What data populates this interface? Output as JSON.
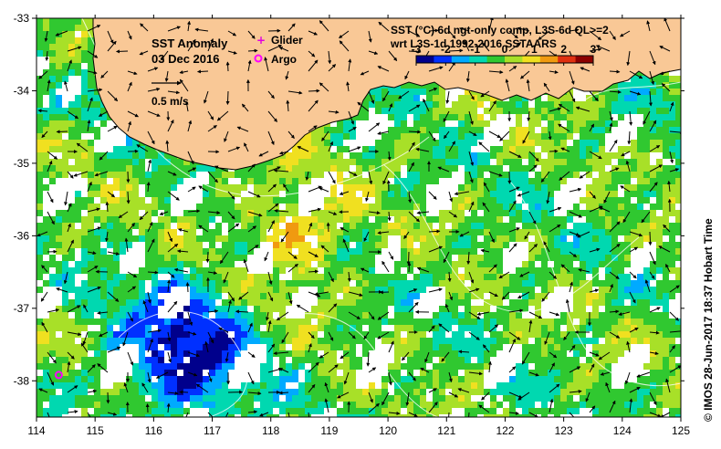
{
  "map": {
    "title": "SST Anomaly",
    "date": "03 Dec 2016",
    "scale_label": "0.5 m/s",
    "legend": {
      "glider": "Glider",
      "argo": "Argo",
      "glider_color": "#e000e0",
      "argo_color": "#ff00ff"
    },
    "product_line1": "SST (°C) 6d ngt-only comp, L3S-6d QL>=2",
    "product_line2": "wrt L3S-1d 1992-2016 SSTAARS",
    "credit": "© IMOS 28-Jun-2017 18:37 Hobart Time",
    "colors": {
      "land": "#f9c896",
      "missing": "#ffffff"
    }
  },
  "chart_data": {
    "type": "heatmap",
    "variable": "SST anomaly (°C)",
    "xlim": [
      114,
      125
    ],
    "ylim": [
      -38.5,
      -33
    ],
    "x_ticks": [
      "114",
      "115",
      "116",
      "117",
      "118",
      "119",
      "120",
      "121",
      "122",
      "123",
      "124",
      "125"
    ],
    "y_ticks": [
      "-33",
      "-34",
      "-35",
      "-36",
      "-37",
      "-38"
    ],
    "colorbar": {
      "range": [
        -3,
        3
      ],
      "ticks": [
        "-3",
        "-2",
        "-1",
        "0",
        "1",
        "2",
        "3"
      ],
      "colors": [
        "#00008c",
        "#0030ff",
        "#00aaff",
        "#00d8b0",
        "#30c830",
        "#a8e028",
        "#f0e020",
        "#f09a10",
        "#e03010",
        "#8c0000"
      ]
    },
    "argo_floats": [
      {
        "lon": 114.38,
        "lat": -37.92
      }
    ]
  }
}
